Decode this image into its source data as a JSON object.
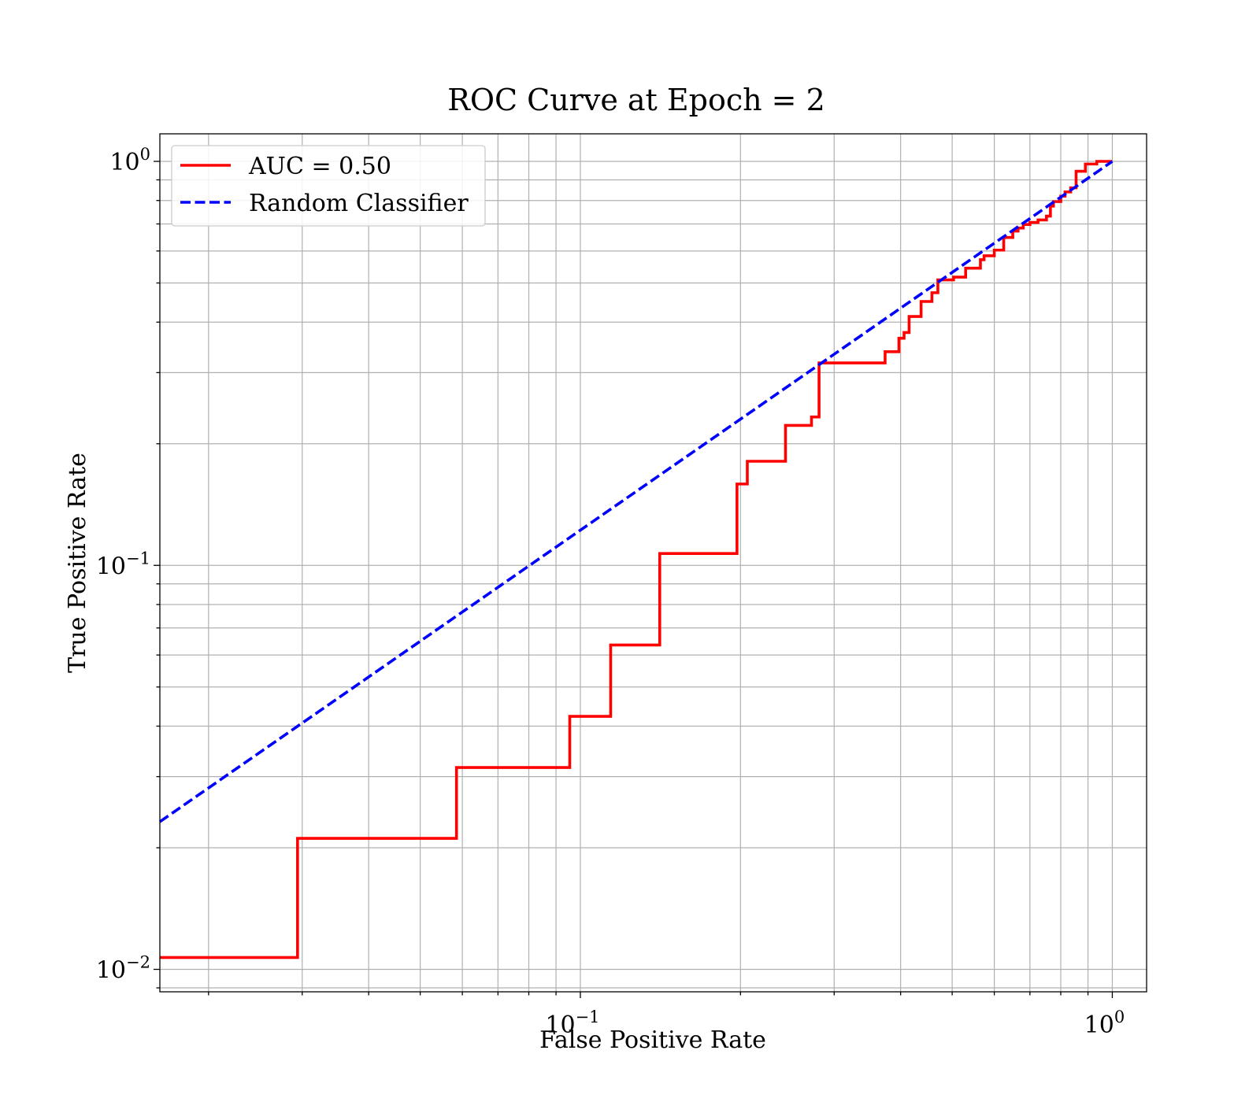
{
  "chart_data": {
    "type": "line",
    "title": "ROC Curve at Epoch = 2",
    "xlabel": "False Positive Rate",
    "ylabel": "True Positive Rate",
    "xscale": "log",
    "yscale": "log",
    "xlim": [
      0.0162,
      1.16
    ],
    "ylim": [
      0.0088,
      1.17
    ],
    "grid": true,
    "grid_minor": true,
    "legend_position": "top-left",
    "x_ticks": [
      {
        "base": "10",
        "exp": "−1",
        "value": 0.1
      },
      {
        "base": "10",
        "exp": "0",
        "value": 1
      }
    ],
    "y_ticks": [
      {
        "base": "10",
        "exp": "−2",
        "value": 0.01
      },
      {
        "base": "10",
        "exp": "−1",
        "value": 0.1
      },
      {
        "base": "10",
        "exp": "0",
        "value": 1
      }
    ],
    "series": [
      {
        "name": "AUC = 0.50",
        "color": "#ff0000",
        "style": "solid",
        "step": true,
        "points": [
          [
            0.0162,
            0.0107
          ],
          [
            0.0294,
            0.0107
          ],
          [
            0.0294,
            0.0211
          ],
          [
            0.0585,
            0.0211
          ],
          [
            0.0585,
            0.0316
          ],
          [
            0.0955,
            0.0316
          ],
          [
            0.0955,
            0.0423
          ],
          [
            0.114,
            0.0423
          ],
          [
            0.114,
            0.0635
          ],
          [
            0.141,
            0.0635
          ],
          [
            0.141,
            0.107
          ],
          [
            0.197,
            0.107
          ],
          [
            0.197,
            0.159
          ],
          [
            0.206,
            0.159
          ],
          [
            0.206,
            0.181
          ],
          [
            0.243,
            0.181
          ],
          [
            0.243,
            0.222
          ],
          [
            0.272,
            0.222
          ],
          [
            0.272,
            0.233
          ],
          [
            0.281,
            0.233
          ],
          [
            0.281,
            0.317
          ],
          [
            0.374,
            0.317
          ],
          [
            0.374,
            0.338
          ],
          [
            0.397,
            0.338
          ],
          [
            0.397,
            0.365
          ],
          [
            0.406,
            0.365
          ],
          [
            0.406,
            0.377
          ],
          [
            0.415,
            0.377
          ],
          [
            0.415,
            0.413
          ],
          [
            0.437,
            0.413
          ],
          [
            0.437,
            0.45
          ],
          [
            0.458,
            0.45
          ],
          [
            0.458,
            0.473
          ],
          [
            0.47,
            0.473
          ],
          [
            0.47,
            0.509
          ],
          [
            0.503,
            0.509
          ],
          [
            0.503,
            0.517
          ],
          [
            0.53,
            0.517
          ],
          [
            0.53,
            0.544
          ],
          [
            0.565,
            0.544
          ],
          [
            0.565,
            0.571
          ],
          [
            0.574,
            0.571
          ],
          [
            0.574,
            0.584
          ],
          [
            0.6,
            0.584
          ],
          [
            0.6,
            0.603
          ],
          [
            0.625,
            0.603
          ],
          [
            0.625,
            0.648
          ],
          [
            0.65,
            0.648
          ],
          [
            0.65,
            0.672
          ],
          [
            0.665,
            0.672
          ],
          [
            0.665,
            0.684
          ],
          [
            0.68,
            0.684
          ],
          [
            0.68,
            0.698
          ],
          [
            0.7,
            0.698
          ],
          [
            0.7,
            0.706
          ],
          [
            0.725,
            0.706
          ],
          [
            0.725,
            0.716
          ],
          [
            0.752,
            0.716
          ],
          [
            0.752,
            0.732
          ],
          [
            0.765,
            0.732
          ],
          [
            0.765,
            0.775
          ],
          [
            0.775,
            0.775
          ],
          [
            0.775,
            0.795
          ],
          [
            0.8,
            0.795
          ],
          [
            0.8,
            0.82
          ],
          [
            0.815,
            0.82
          ],
          [
            0.815,
            0.84
          ],
          [
            0.835,
            0.84
          ],
          [
            0.835,
            0.86
          ],
          [
            0.855,
            0.86
          ],
          [
            0.855,
            0.945
          ],
          [
            0.89,
            0.945
          ],
          [
            0.89,
            0.985
          ],
          [
            0.935,
            0.985
          ],
          [
            0.935,
            1.0
          ],
          [
            1.0,
            1.0
          ]
        ]
      },
      {
        "name": "Random Classifier",
        "color": "#0000ff",
        "style": "dashed",
        "step": false,
        "points": [
          [
            0.0162,
            0.0232
          ],
          [
            1.0,
            1.0
          ]
        ]
      }
    ]
  },
  "legend": {
    "items": [
      {
        "label": "AUC = 0.50",
        "color": "#ff0000",
        "style": "solid"
      },
      {
        "label": "Random Classifier",
        "color": "#0000ff",
        "style": "dashed"
      }
    ]
  }
}
